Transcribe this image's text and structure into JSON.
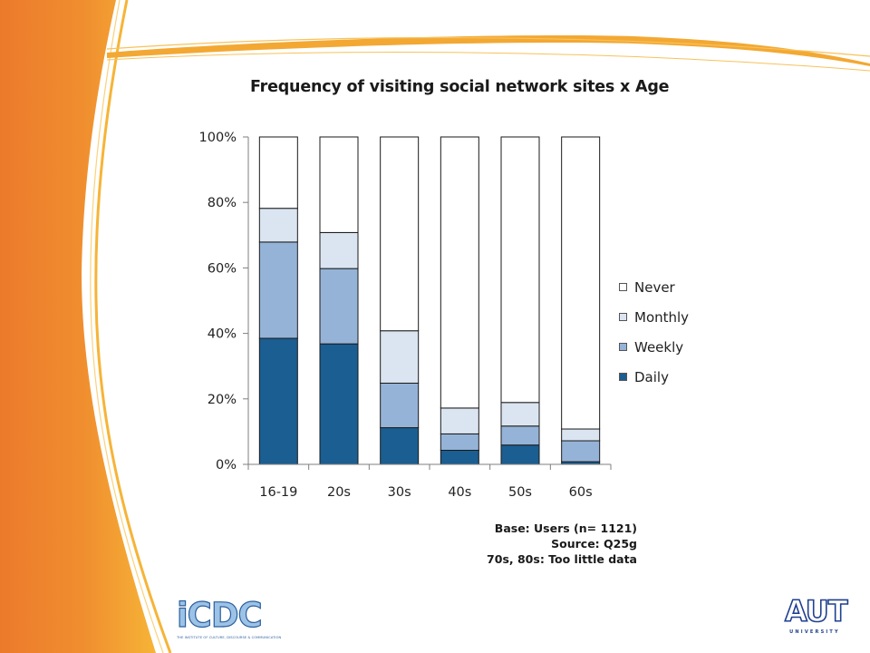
{
  "chart_data": {
    "type": "bar",
    "stacked": true,
    "percent": true,
    "title": "Frequency of visiting social network sites x Age",
    "categories": [
      "16-19",
      "20s",
      "30s",
      "40s",
      "50s",
      "60s"
    ],
    "series": [
      {
        "name": "Daily",
        "color": "#1b5e91",
        "values": [
          38.5,
          36.8,
          11.2,
          4.3,
          5.9,
          0.8
        ]
      },
      {
        "name": "Weekly",
        "color": "#95b3d7",
        "values": [
          29.4,
          23.0,
          13.6,
          5.0,
          5.8,
          6.4
        ]
      },
      {
        "name": "Monthly",
        "color": "#dbe5f1",
        "values": [
          10.3,
          11.0,
          16.0,
          7.9,
          7.2,
          3.6
        ]
      },
      {
        "name": "Never",
        "color": "#ffffff",
        "values": [
          21.8,
          29.2,
          59.2,
          82.8,
          81.1,
          89.2
        ]
      }
    ],
    "yticks": [
      "0%",
      "20%",
      "40%",
      "60%",
      "80%",
      "100%"
    ],
    "ylim": [
      0,
      100
    ],
    "legend_position": "right",
    "legend_order": [
      "Never",
      "Monthly",
      "Weekly",
      "Daily"
    ]
  },
  "notes": [
    "Base: Users (n= 1121)",
    "Source: Q25g",
    "70s, 80s: Too little data"
  ],
  "logos": {
    "icdc": {
      "text": "iCDC",
      "tagline": "THE INSTITUTE OF CULTURE, DISCOURSE & COMMUNICATION"
    },
    "aut": {
      "text": "AUT",
      "subtitle": "UNIVERSITY"
    }
  },
  "theme": {
    "accent_orange": "#ee7f2d",
    "accent_yellow": "#f5b335"
  }
}
